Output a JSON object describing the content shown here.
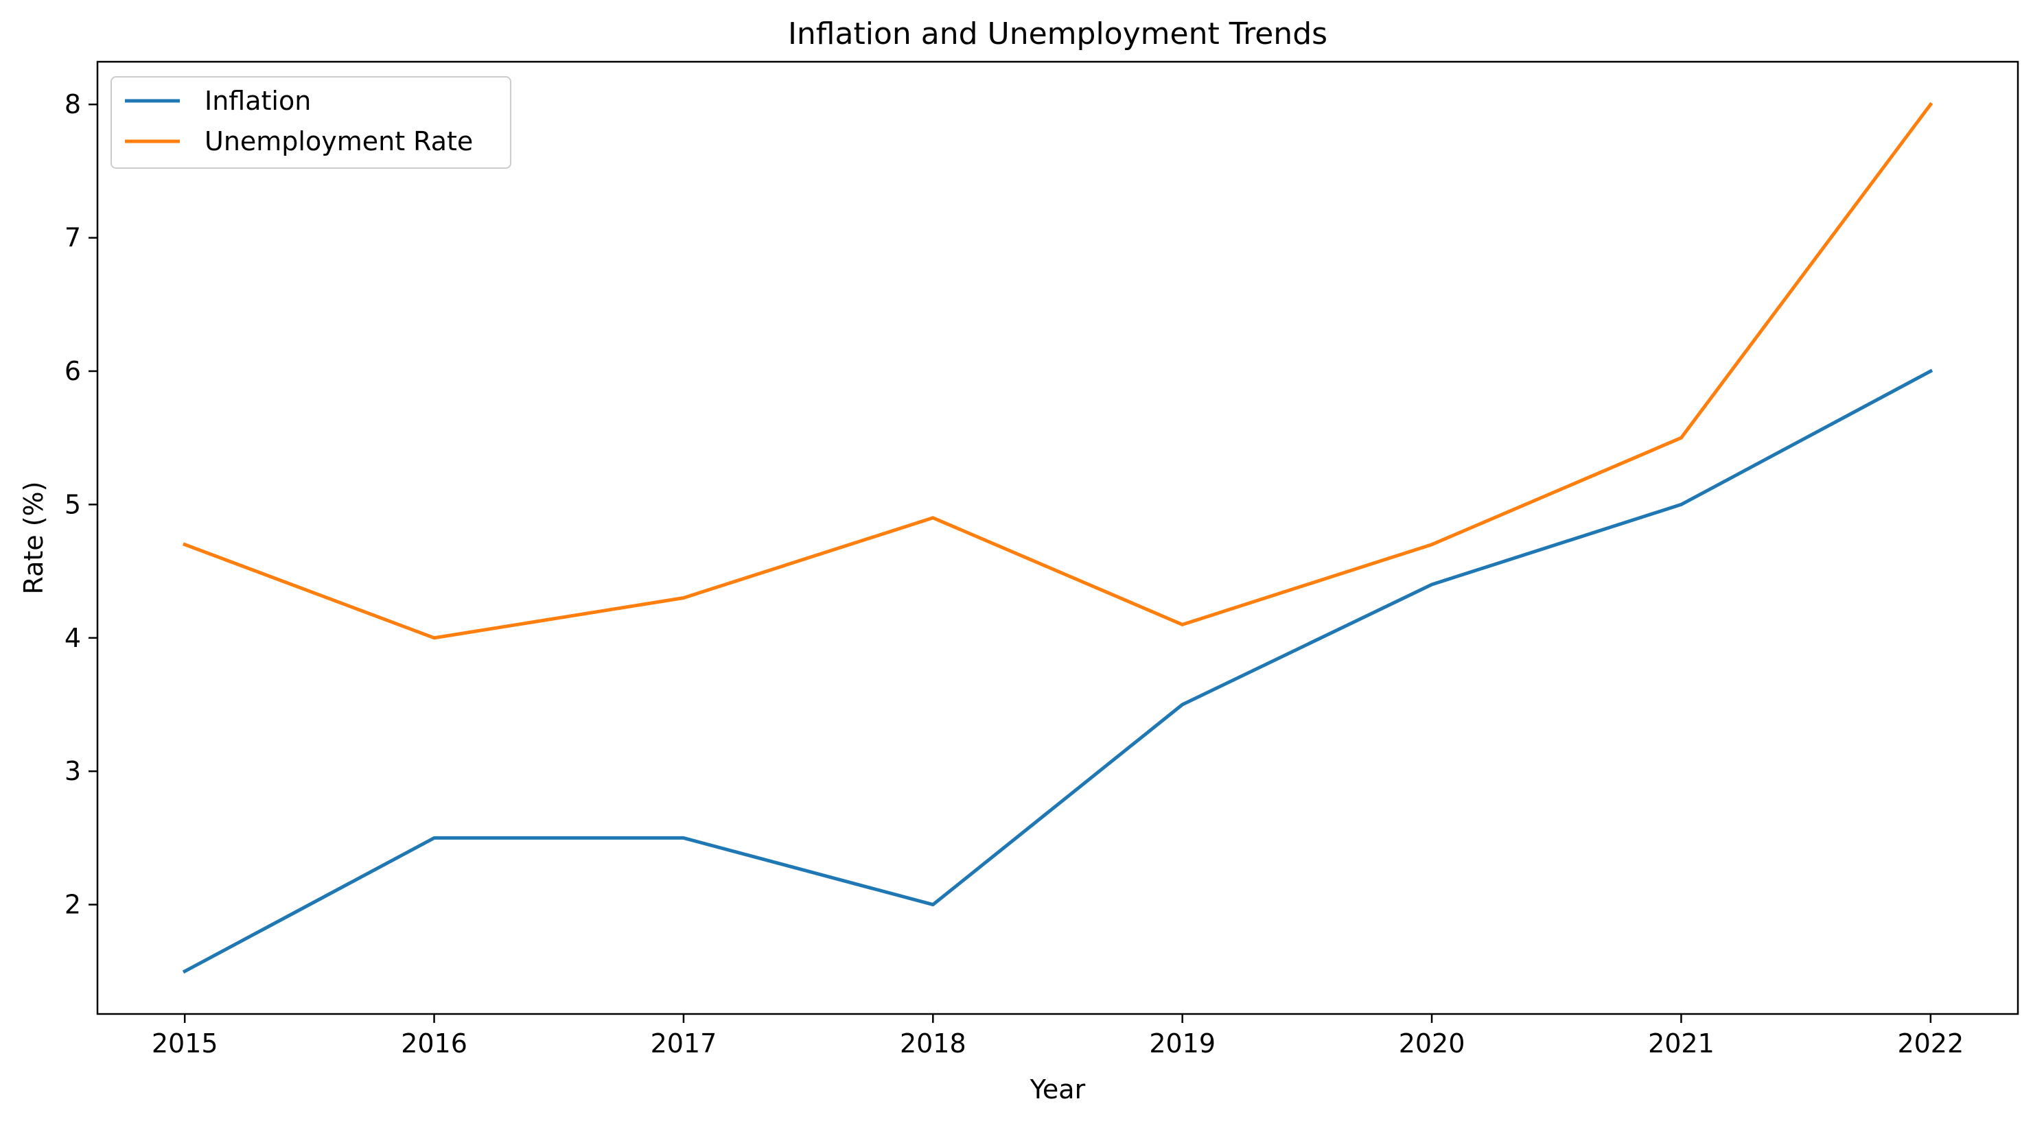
{
  "chart_data": {
    "type": "line",
    "title": "Inflation and Unemployment Trends",
    "xlabel": "Year",
    "ylabel": "Rate (%)",
    "x": [
      2015,
      2016,
      2017,
      2018,
      2019,
      2020,
      2021,
      2022
    ],
    "x_tick_labels": [
      "2015",
      "2016",
      "2017",
      "2018",
      "2019",
      "2020",
      "2021",
      "2022"
    ],
    "y_ticks": [
      2,
      3,
      4,
      5,
      6,
      7,
      8
    ],
    "y_tick_labels": [
      "2",
      "3",
      "4",
      "5",
      "6",
      "7",
      "8"
    ],
    "xlim": [
      2014.65,
      2022.35
    ],
    "ylim": [
      1.18,
      8.32
    ],
    "grid": false,
    "legend_position": "top-left",
    "series": [
      {
        "name": "Inflation",
        "color": "#1f77b4",
        "values": [
          1.5,
          2.5,
          2.5,
          2.0,
          3.5,
          4.4,
          5.0,
          6.0
        ]
      },
      {
        "name": "Unemployment Rate",
        "color": "#ff7f0e",
        "values": [
          4.7,
          4.0,
          4.3,
          4.9,
          4.1,
          4.7,
          5.5,
          8.0
        ]
      }
    ]
  }
}
